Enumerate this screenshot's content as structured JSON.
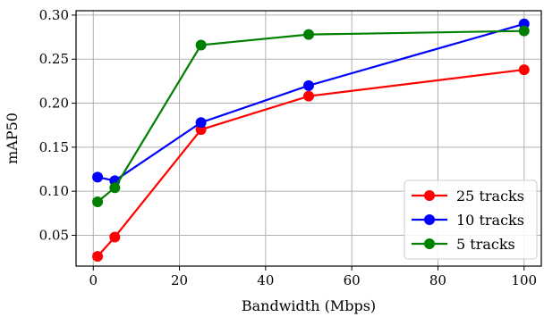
{
  "chart_data": {
    "type": "line",
    "title": "",
    "xlabel": "Bandwidth (Mbps)",
    "ylabel": "mAP50",
    "xlim": [
      -4,
      104
    ],
    "ylim": [
      0.015,
      0.305
    ],
    "xticks": [
      0,
      20,
      40,
      60,
      80,
      100
    ],
    "xtick_labels": [
      "0",
      "20",
      "40",
      "60",
      "80",
      "100"
    ],
    "yticks": [
      0.05,
      0.1,
      0.15,
      0.2,
      0.25,
      0.3
    ],
    "ytick_labels": [
      "0.05",
      "0.10",
      "0.15",
      "0.20",
      "0.25",
      "0.30"
    ],
    "grid": true,
    "legend_position": "lower-right",
    "series": [
      {
        "name": "25 tracks",
        "color": "#ff0000",
        "x": [
          1,
          5,
          25,
          50,
          100
        ],
        "y": [
          0.026,
          0.048,
          0.17,
          0.208,
          0.238
        ]
      },
      {
        "name": "10 tracks",
        "color": "#0000ff",
        "x": [
          1,
          5,
          25,
          50,
          100
        ],
        "y": [
          0.116,
          0.112,
          0.178,
          0.22,
          0.29
        ]
      },
      {
        "name": "5 tracks",
        "color": "#008000",
        "x": [
          1,
          5,
          25,
          50,
          100
        ],
        "y": [
          0.088,
          0.104,
          0.266,
          0.278,
          0.282
        ]
      }
    ]
  }
}
